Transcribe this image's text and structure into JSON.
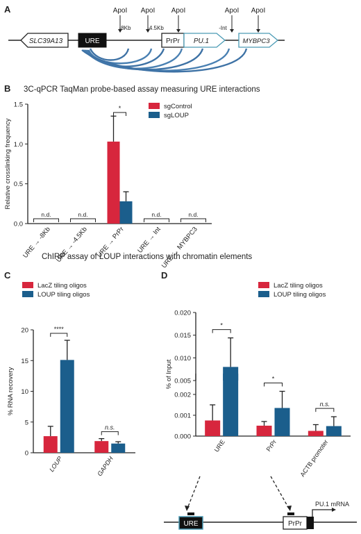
{
  "colors": {
    "red": "#d7263d",
    "blue": "#1b5e8c",
    "loop": "#1d5a96",
    "axis": "#222222"
  },
  "panel_a": {
    "letter": "A",
    "genes": {
      "slc": "SLC39A13",
      "ure": "URE",
      "prpr": "PrPr",
      "pu1": "PU.1",
      "mybpc3": "MYBPC3"
    },
    "sites": [
      "ApoI",
      "ApoI",
      "ApoI",
      "ApoI",
      "ApoI"
    ],
    "distances": [
      "-8Kb",
      "-4.5Kb",
      "-Int"
    ]
  },
  "panel_d_diagram": {
    "ure": "URE",
    "prpr": "PrPr",
    "mrna": "PU.1 mRNA"
  },
  "chart_data": [
    {
      "type": "bar",
      "panel": "B",
      "title": "3C-qPCR TaqMan probe-based assay measuring URE interactions",
      "ylabel": "Relative crosslinking frequency",
      "ylim": [
        0,
        1.5
      ],
      "yticks": [
        "0.0",
        "0.5",
        "1.0",
        "1.5"
      ],
      "categories": [
        "URE → -8Kb",
        "URE → -4.5Kb",
        "URE → PrPr",
        "URE → Int",
        "URE → MYBPC3"
      ],
      "series": [
        {
          "name": "sgControl",
          "values": [
            0,
            0,
            1.03,
            0,
            0
          ],
          "errors": [
            0,
            0,
            0.32,
            0,
            0
          ]
        },
        {
          "name": "sgLOUP",
          "values": [
            0,
            0,
            0.28,
            0,
            0
          ],
          "errors": [
            0,
            0,
            0.12,
            0,
            0
          ]
        }
      ],
      "annotations": [
        "n.d.",
        "n.d.",
        "*",
        "n.d.",
        "n.d."
      ],
      "legend": "top-right"
    },
    {
      "type": "bar",
      "panel": "C",
      "title": "ChIRP assay of LOUP interactions with chromatin elements",
      "ylabel": "% RNA recovery",
      "ylim": [
        0,
        20
      ],
      "yticks": [
        "0",
        "5",
        "10",
        "15",
        "20"
      ],
      "categories": [
        "LOUP",
        "GAPDH"
      ],
      "series": [
        {
          "name": "LacZ tiling oligos",
          "values": [
            2.7,
            1.9
          ],
          "errors": [
            1.6,
            0.4
          ]
        },
        {
          "name": "LOUP tiling oligos",
          "values": [
            15.1,
            1.5
          ],
          "errors": [
            3.2,
            0.3
          ]
        }
      ],
      "annotations": [
        "****",
        "n.s."
      ],
      "legend": "top-left"
    },
    {
      "type": "bar",
      "panel": "D",
      "ylabel": "% of Input",
      "y_axis_broken": true,
      "yticks_lower": [
        "0.000",
        "0.001",
        "0.002"
      ],
      "yticks_upper": [
        "0.005",
        "0.010",
        "0.015",
        "0.020"
      ],
      "categories": [
        "URE",
        "PrPr",
        "ACTB promoter"
      ],
      "series": [
        {
          "name": "LacZ tiling oligos",
          "values": [
            0.00075,
            0.0005,
            0.00025
          ],
          "errors": [
            0.00075,
            0.0002,
            0.0003
          ]
        },
        {
          "name": "LOUP tiling oligos",
          "values": [
            0.008,
            0.00135,
            0.00048
          ],
          "errors": [
            0.0064,
            0.0008,
            0.00045
          ]
        }
      ],
      "annotations": [
        "*",
        "*",
        "n.s."
      ],
      "legend": "top-right"
    }
  ]
}
